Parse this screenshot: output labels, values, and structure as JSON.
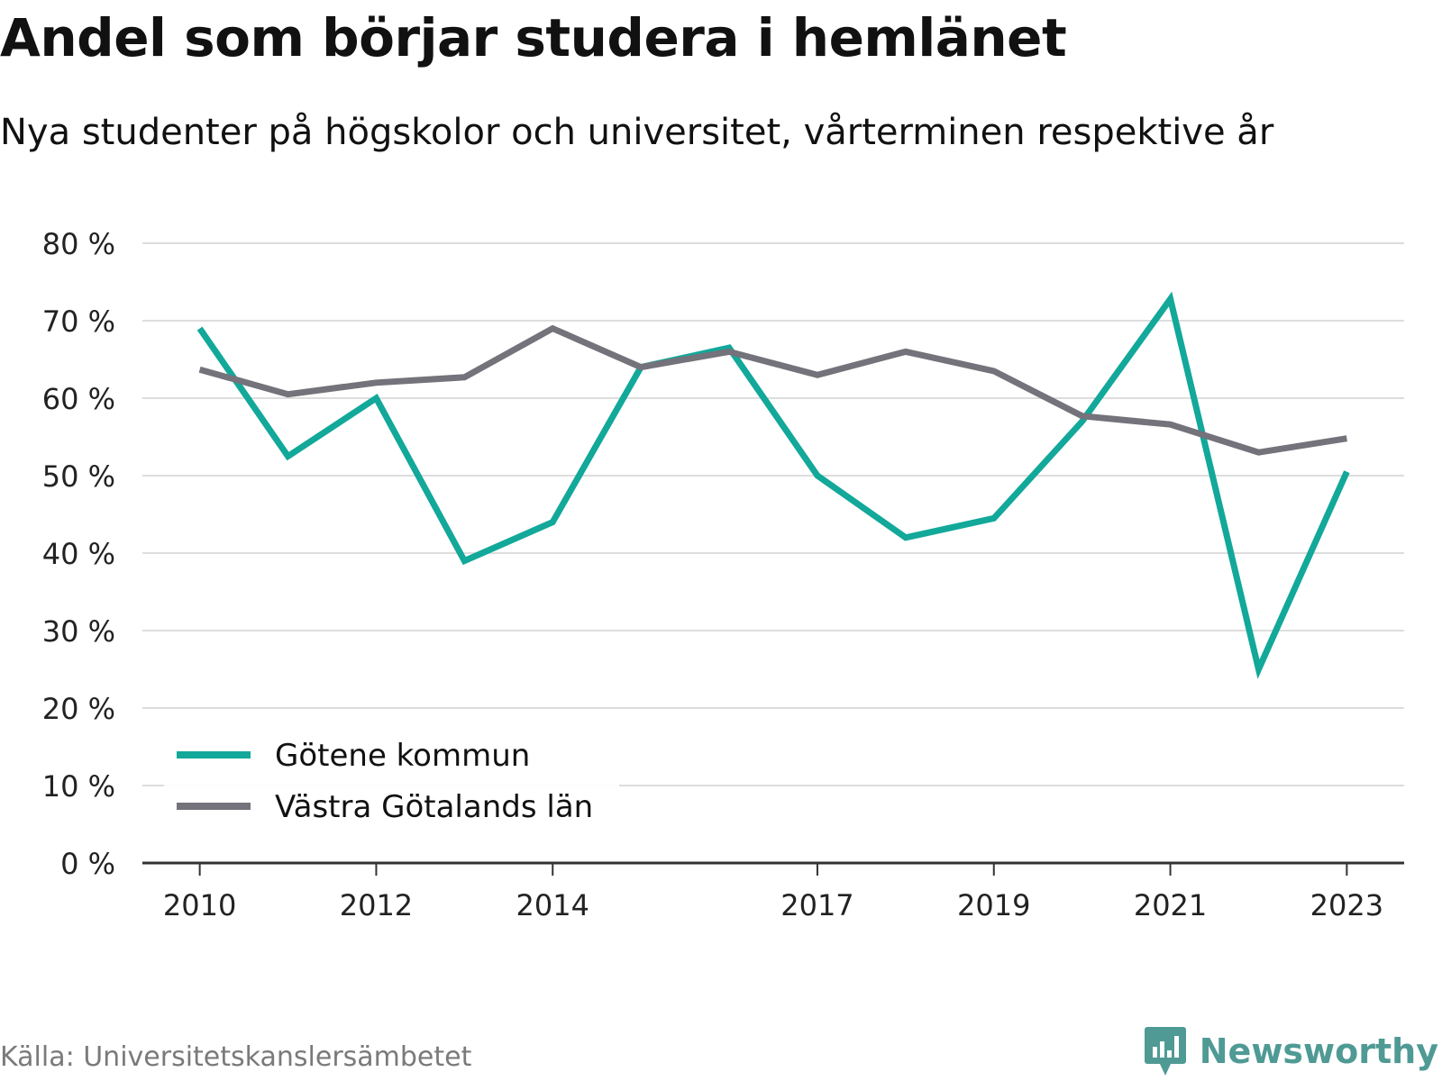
{
  "title": "Andel som börjar studera i hemlänet",
  "subtitle": "Nya studenter på högskolor och universitet, vårterminen respektive år",
  "source": "Källa: Universitetskanslersämbetet",
  "brand": {
    "name": "Newsworthy",
    "icon": "newsworthy-logo-icon",
    "color": "#4f9a94"
  },
  "chart_data": {
    "type": "line",
    "x": [
      2010,
      2011,
      2012,
      2013,
      2014,
      2015,
      2016,
      2017,
      2018,
      2019,
      2020,
      2021,
      2022,
      2023
    ],
    "x_tick_labels": [
      "2010",
      "2012",
      "2014",
      "2017",
      "2019",
      "2021",
      "2023"
    ],
    "y_tick_labels": [
      "0 %",
      "10 %",
      "20 %",
      "30 %",
      "40 %",
      "50 %",
      "60 %",
      "70 %",
      "80 %"
    ],
    "ylim": [
      0,
      80
    ],
    "grid": true,
    "legend_position": "bottom-left",
    "series": [
      {
        "name": "Götene kommun",
        "color": "#12a89a",
        "values": [
          69.0,
          52.5,
          60.0,
          39.0,
          44.0,
          64.0,
          66.5,
          50.0,
          42.0,
          44.5,
          57.0,
          72.8,
          25.0,
          50.5
        ]
      },
      {
        "name": "Västra Götalands län",
        "color": "#74727a",
        "values": [
          63.7,
          60.5,
          62.0,
          62.7,
          69.0,
          64.0,
          66.0,
          63.0,
          66.0,
          63.5,
          57.7,
          56.6,
          53.0,
          54.8
        ]
      }
    ]
  }
}
